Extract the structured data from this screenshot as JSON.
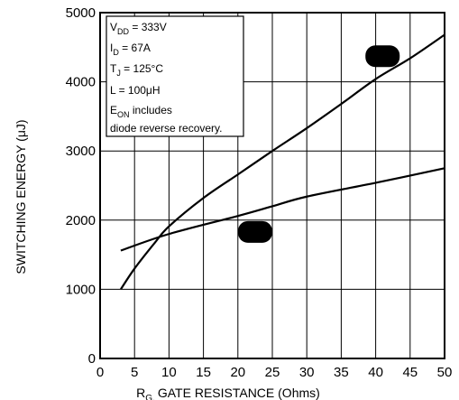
{
  "chart_data": {
    "type": "line",
    "xlabel_main": "GATE RESISTANCE (Ohms)",
    "xlabel_prefix": "R",
    "xlabel_subscript": "G,",
    "ylabel": "SWITCHING ENERGY (μJ)",
    "xlim": [
      0,
      50
    ],
    "ylim": [
      0,
      5000
    ],
    "x_ticks": [
      0,
      5,
      10,
      15,
      20,
      25,
      30,
      35,
      40,
      45,
      50
    ],
    "y_ticks": [
      0,
      1000,
      2000,
      3000,
      4000,
      5000
    ],
    "grid": true,
    "series": [
      {
        "marker": "rounded-rect",
        "color": "#000000",
        "points": [
          [
            3,
            1000
          ],
          [
            5,
            1300
          ],
          [
            8,
            1680
          ],
          [
            10,
            1910
          ],
          [
            15,
            2320
          ],
          [
            20,
            2660
          ],
          [
            25,
            3000
          ],
          [
            30,
            3330
          ],
          [
            35,
            3680
          ],
          [
            40,
            4040
          ],
          [
            45,
            4340
          ],
          [
            50,
            4680
          ]
        ]
      },
      {
        "marker": "rounded-rect",
        "color": "#000000",
        "points": [
          [
            3,
            1560
          ],
          [
            10,
            1800
          ],
          [
            20,
            2060
          ],
          [
            25,
            2200
          ],
          [
            30,
            2340
          ],
          [
            40,
            2540
          ],
          [
            50,
            2750
          ]
        ]
      }
    ],
    "marker_positions": [
      [
        22.5,
        1830
      ],
      [
        41,
        4370
      ]
    ],
    "conditions": {
      "vdd": {
        "base": "V",
        "sub": "DD",
        "rest": " = 333V"
      },
      "id": {
        "base": "I",
        "sub": "D",
        "rest": " = 67A"
      },
      "tj": {
        "base": "T",
        "sub": "J",
        "rest": " = 125°C"
      },
      "l": {
        "base": "",
        "sub": "",
        "rest": "L = 100μH"
      },
      "eon": {
        "base": "E",
        "sub": "ON",
        "rest": "  includes"
      },
      "diode": {
        "base": "",
        "sub": "",
        "rest": "diode reverse recovery."
      }
    }
  }
}
